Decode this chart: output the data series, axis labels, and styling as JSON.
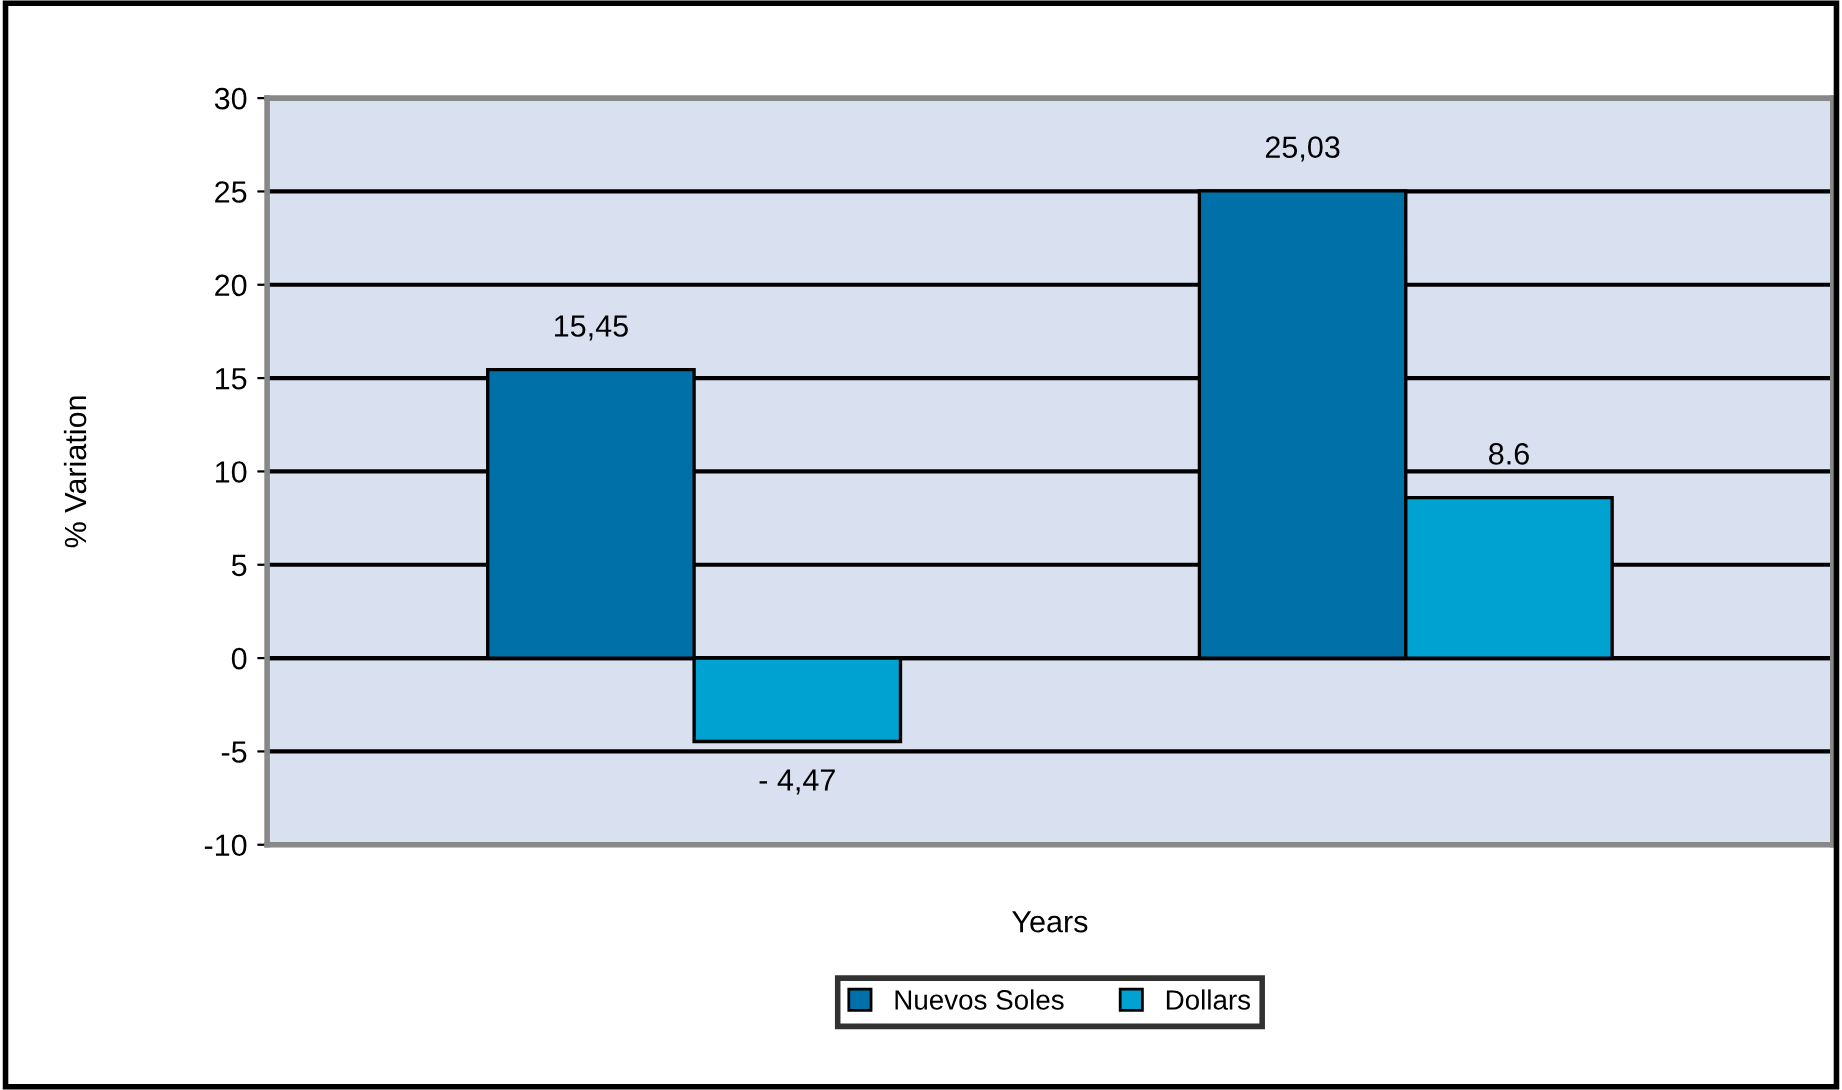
{
  "chart_data": {
    "type": "bar",
    "xlabel": "Years",
    "ylabel": "% Variation",
    "categories": [
      null,
      null
    ],
    "series": [
      {
        "name": "Nuevos Soles",
        "color": "#0070a8",
        "values": [
          15.45,
          25.03
        ],
        "value_labels": [
          "15,45",
          "25,03"
        ]
      },
      {
        "name": "Dollars",
        "color": "#00a2d2",
        "values": [
          -4.47,
          8.6
        ],
        "value_labels": [
          "- 4,47",
          "8.6"
        ]
      }
    ],
    "ylim": [
      -10,
      30
    ],
    "yticks": [
      -10,
      -5,
      0,
      5,
      10,
      15,
      20,
      25,
      30
    ],
    "grid": "y",
    "legend": "bottom"
  }
}
